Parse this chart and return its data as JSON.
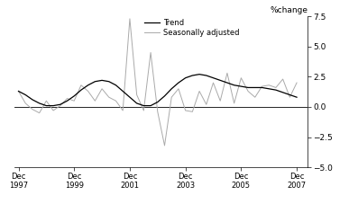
{
  "title": "",
  "ylabel": "%change",
  "ylim": [
    -5.0,
    7.5
  ],
  "yticks": [
    -5.0,
    -2.5,
    0.0,
    2.5,
    5.0,
    7.5
  ],
  "background_color": "#ffffff",
  "trend_color": "#000000",
  "seas_color": "#aaaaaa",
  "legend_entries": [
    "Trend",
    "Seasonally adjusted"
  ],
  "x_tick_years": [
    1997,
    1999,
    2001,
    2003,
    2005,
    2007
  ],
  "trend": [
    1.3,
    1.0,
    0.6,
    0.3,
    0.1,
    0.1,
    0.2,
    0.5,
    0.9,
    1.4,
    1.8,
    2.1,
    2.2,
    2.1,
    1.8,
    1.3,
    0.8,
    0.3,
    0.1,
    0.1,
    0.4,
    0.9,
    1.5,
    2.0,
    2.4,
    2.6,
    2.7,
    2.6,
    2.4,
    2.2,
    2.0,
    1.8,
    1.7,
    1.6,
    1.6,
    1.6,
    1.5,
    1.4,
    1.2,
    1.0,
    0.8
  ],
  "seas": [
    1.3,
    0.3,
    -0.2,
    -0.5,
    0.5,
    -0.3,
    0.1,
    0.7,
    0.5,
    1.8,
    1.3,
    0.5,
    1.5,
    0.8,
    0.5,
    -0.3,
    7.3,
    1.0,
    -0.3,
    4.5,
    -0.4,
    -3.2,
    0.8,
    1.5,
    -0.3,
    -0.4,
    1.3,
    0.2,
    2.0,
    0.5,
    2.8,
    0.3,
    2.4,
    1.3,
    0.8,
    1.7,
    1.8,
    1.6,
    2.3,
    0.8,
    2.0
  ]
}
